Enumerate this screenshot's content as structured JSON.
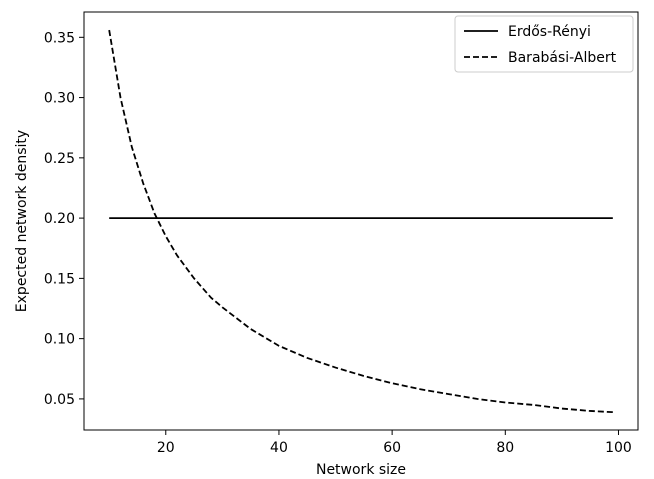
{
  "chart_data": {
    "type": "line",
    "title": "",
    "xlabel": "Network size",
    "ylabel": "Expected network density",
    "xlim": [
      5.55,
      103.45
    ],
    "ylim": [
      0.0242,
      0.371
    ],
    "xticks": [
      20,
      40,
      60,
      80,
      100
    ],
    "xtick_labels": [
      "20",
      "40",
      "60",
      "80",
      "100"
    ],
    "yticks": [
      0.05,
      0.1,
      0.15,
      0.2,
      0.25,
      0.3,
      0.35
    ],
    "ytick_labels": [
      "0.05",
      "0.10",
      "0.15",
      "0.20",
      "0.25",
      "0.30",
      "0.35"
    ],
    "grid": false,
    "legend_position": "top-right",
    "series": [
      {
        "name": "Erdős-Rényi",
        "style": "solid",
        "color": "#000000",
        "x": [
          10,
          99
        ],
        "y": [
          0.2,
          0.2
        ]
      },
      {
        "name": "Barabási-Albert",
        "style": "dashed",
        "color": "#000000",
        "x": [
          10,
          12,
          14,
          16,
          18,
          20,
          22,
          25,
          28,
          30,
          35,
          40,
          45,
          50,
          55,
          60,
          65,
          70,
          75,
          80,
          85,
          90,
          95,
          99
        ],
        "y": [
          0.356,
          0.3,
          0.259,
          0.229,
          0.204,
          0.185,
          0.169,
          0.15,
          0.134,
          0.126,
          0.108,
          0.094,
          0.084,
          0.076,
          0.069,
          0.063,
          0.058,
          0.054,
          0.05,
          0.047,
          0.045,
          0.042,
          0.04,
          0.039
        ]
      }
    ]
  }
}
